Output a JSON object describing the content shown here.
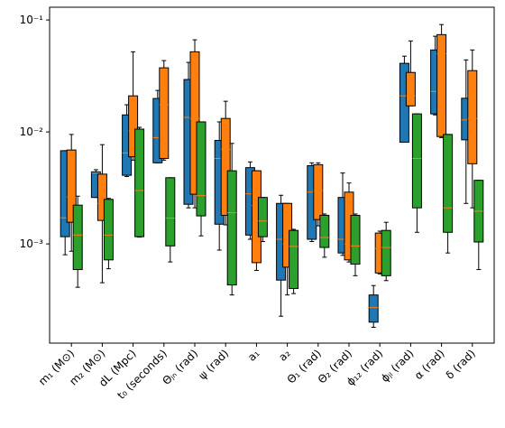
{
  "chart_data": {
    "type": "boxplot",
    "categories": [
      "m₁ (M⊙)",
      "m₂ (M⊙)",
      "dL (Mpc)",
      "t₀ (seconds)",
      "Θⱼₙ (rad)",
      "ψ (rad)",
      "a₁",
      "a₂",
      "Θ₁ (rad)",
      "Θ₂ (rad)",
      "ϕ₁₂ (rad)",
      "ϕⱼₗ (rad)",
      "α (rad)",
      "δ (rad)"
    ],
    "log_scale": true,
    "ylim": [
      0.00013,
      0.13
    ],
    "yticks": [
      {
        "value": 0.001,
        "label": "10⁻³"
      },
      {
        "value": 0.01,
        "label": "10⁻²"
      },
      {
        "value": 0.1,
        "label": "10⁻¹"
      }
    ],
    "median_color": "#ff7f0e",
    "series": [
      {
        "color": "#1f77b4",
        "boxes": [
          {
            "whislo": 0.0008,
            "q1": 0.00116,
            "med": 0.00171,
            "q3": 0.0068,
            "whishi": 0.0068
          },
          {
            "whislo": 0.0026,
            "q1": 0.0026,
            "med": 0.0043,
            "q3": 0.0044,
            "whishi": 0.0046
          },
          {
            "whislo": 0.004,
            "q1": 0.0041,
            "med": 0.0065,
            "q3": 0.0142,
            "whishi": 0.0175
          },
          {
            "whislo": 0.0053,
            "q1": 0.0053,
            "med": 0.0089,
            "q3": 0.0199,
            "whishi": 0.0235
          },
          {
            "whislo": 0.0021,
            "q1": 0.00226,
            "med": 0.0135,
            "q3": 0.0294,
            "whishi": 0.0418
          },
          {
            "whislo": 0.00088,
            "q1": 0.0015,
            "med": 0.0058,
            "q3": 0.0084,
            "whishi": 0.0123
          },
          {
            "whislo": 0.0011,
            "q1": 0.0012,
            "med": 0.0028,
            "q3": 0.0048,
            "whishi": 0.0054
          },
          {
            "whislo": 0.000226,
            "q1": 0.000475,
            "med": 0.0011,
            "q3": 0.0023,
            "whishi": 0.00272
          },
          {
            "whislo": 0.00105,
            "q1": 0.0011,
            "med": 0.0029,
            "q3": 0.005,
            "whishi": 0.0053
          },
          {
            "whislo": 0.00079,
            "q1": 0.00083,
            "med": 0.0011,
            "q3": 0.0026,
            "whishi": 0.0043
          },
          {
            "whislo": 0.00018,
            "q1": 0.0002,
            "med": 0.00027,
            "q3": 0.00035,
            "whishi": 0.000425
          },
          {
            "whislo": 0.0081,
            "q1": 0.0081,
            "med": 0.021,
            "q3": 0.041,
            "whishi": 0.0475
          },
          {
            "whislo": 0.0142,
            "q1": 0.0145,
            "med": 0.023,
            "q3": 0.054,
            "whishi": 0.0716
          },
          {
            "whislo": 0.0023,
            "q1": 0.0085,
            "med": 0.0128,
            "q3": 0.02,
            "whishi": 0.044
          }
        ]
      },
      {
        "color": "#ff7f0e",
        "boxes": [
          {
            "whislo": 0.00086,
            "q1": 0.00156,
            "med": 0.00262,
            "q3": 0.0069,
            "whishi": 0.0095
          },
          {
            "whislo": 0.00045,
            "q1": 0.00162,
            "med": 0.0023,
            "q3": 0.0042,
            "whishi": 0.0077
          },
          {
            "whislo": 0.0056,
            "q1": 0.006,
            "med": 0.0102,
            "q3": 0.021,
            "whishi": 0.052
          },
          {
            "whislo": 0.0056,
            "q1": 0.0058,
            "med": 0.0175,
            "q3": 0.0374,
            "whishi": 0.0434
          },
          {
            "whislo": 0.0021,
            "q1": 0.00278,
            "med": 0.0132,
            "q3": 0.052,
            "whishi": 0.0665
          },
          {
            "whislo": 0.00148,
            "q1": 0.0018,
            "med": 0.007,
            "q3": 0.0132,
            "whishi": 0.0188
          },
          {
            "whislo": 0.00058,
            "q1": 0.00068,
            "med": 0.0022,
            "q3": 0.0045,
            "whishi": 0.0045
          },
          {
            "whislo": 0.00035,
            "q1": 0.00062,
            "med": 0.001,
            "q3": 0.0023,
            "whishi": 0.0023
          },
          {
            "whislo": 0.00145,
            "q1": 0.00165,
            "med": 0.003,
            "q3": 0.0051,
            "whishi": 0.0053
          },
          {
            "whislo": 0.00069,
            "q1": 0.00072,
            "med": 0.001,
            "q3": 0.0029,
            "whishi": 0.0035
          },
          {
            "whislo": 0.00054,
            "q1": 0.00055,
            "med": 0.00091,
            "q3": 0.00125,
            "whishi": 0.0013
          },
          {
            "whislo": 0.0171,
            "q1": 0.0171,
            "med": 0.021,
            "q3": 0.034,
            "whishi": 0.065
          },
          {
            "whislo": 0.0089,
            "q1": 0.0091,
            "med": 0.05,
            "q3": 0.074,
            "whishi": 0.091
          },
          {
            "whislo": 0.0021,
            "q1": 0.0052,
            "med": 0.0132,
            "q3": 0.0353,
            "whishi": 0.054
          }
        ]
      },
      {
        "color": "#2ca02c",
        "boxes": [
          {
            "whislo": 0.00041,
            "q1": 0.00059,
            "med": 0.0012,
            "q3": 0.00222,
            "whishi": 0.00267
          },
          {
            "whislo": 0.0006,
            "q1": 0.00072,
            "med": 0.0012,
            "q3": 0.0025,
            "whishi": 0.00255
          },
          {
            "whislo": 0.00115,
            "q1": 0.00116,
            "med": 0.003,
            "q3": 0.0106,
            "whishi": 0.011
          },
          {
            "whislo": 0.00069,
            "q1": 0.00096,
            "med": 0.0017,
            "q3": 0.0039,
            "whishi": 0.0039
          },
          {
            "whislo": 0.00118,
            "q1": 0.00178,
            "med": 0.0027,
            "q3": 0.0123,
            "whishi": 0.0123
          },
          {
            "whislo": 0.00035,
            "q1": 0.00043,
            "med": 0.0019,
            "q3": 0.0045,
            "whishi": 0.0079
          },
          {
            "whislo": 0.00105,
            "q1": 0.00116,
            "med": 0.0016,
            "q3": 0.0026,
            "whishi": 0.0026
          },
          {
            "whislo": 0.00036,
            "q1": 0.0004,
            "med": 0.00095,
            "q3": 0.00132,
            "whishi": 0.00135
          },
          {
            "whislo": 0.00076,
            "q1": 0.00093,
            "med": 0.00114,
            "q3": 0.0018,
            "whishi": 0.00185
          },
          {
            "whislo": 0.00052,
            "q1": 0.00066,
            "med": 0.00096,
            "q3": 0.0018,
            "whishi": 0.00185
          },
          {
            "whislo": 0.00047,
            "q1": 0.00052,
            "med": 0.00093,
            "q3": 0.00132,
            "whishi": 0.00156
          },
          {
            "whislo": 0.00127,
            "q1": 0.0021,
            "med": 0.0058,
            "q3": 0.0145,
            "whishi": 0.0145
          },
          {
            "whislo": 0.00083,
            "q1": 0.00127,
            "med": 0.0021,
            "q3": 0.0095,
            "whishi": 0.0095
          },
          {
            "whislo": 0.00059,
            "q1": 0.00104,
            "med": 0.00196,
            "q3": 0.0037,
            "whishi": 0.0037
          }
        ]
      }
    ]
  }
}
